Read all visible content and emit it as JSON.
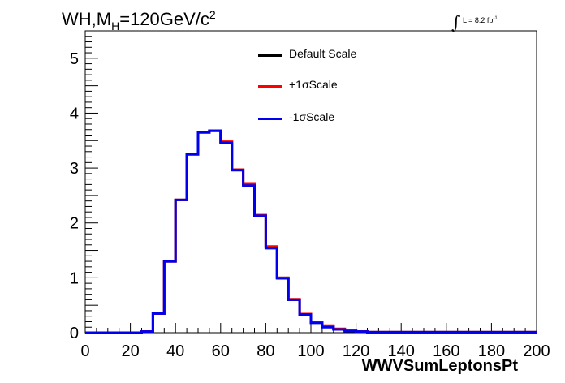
{
  "annotations": {
    "title_main": "WH,M",
    "title_sub": "H",
    "title_value": "=120GeV/c",
    "title_sup": "2",
    "lumi_integral": "∫",
    "lumi_text": "L = 8.2 fb",
    "lumi_sup": "-1"
  },
  "colors": {
    "default": "#000000",
    "plus": "#ff0000",
    "minus": "#0000ee"
  },
  "chart_data": {
    "type": "line",
    "step": true,
    "title": "WH,MH=120GeV/c2",
    "xlabel": "WWVSumLeptonsPt",
    "ylabel": "",
    "xlim": [
      0,
      200
    ],
    "ylim": [
      0,
      5.5
    ],
    "xticks": [
      0,
      20,
      40,
      60,
      80,
      100,
      120,
      140,
      160,
      180,
      200
    ],
    "yticks": [
      0,
      1,
      2,
      3,
      4,
      5
    ],
    "grid": false,
    "legend_position": "top-center",
    "bin_edges": [
      0,
      5,
      10,
      15,
      20,
      25,
      30,
      35,
      40,
      45,
      50,
      55,
      60,
      65,
      70,
      75,
      80,
      85,
      90,
      95,
      100,
      105,
      110,
      115,
      120,
      125,
      130,
      135,
      140,
      145,
      150,
      155,
      160,
      165,
      170,
      175,
      180,
      185,
      190,
      195,
      200
    ],
    "series": [
      {
        "name": "Default Scale",
        "values": [
          0,
          0,
          0,
          0,
          0,
          0.02,
          0.35,
          1.3,
          2.42,
          3.25,
          3.65,
          3.68,
          3.47,
          2.97,
          2.7,
          2.14,
          1.56,
          1.0,
          0.6,
          0.33,
          0.19,
          0.11,
          0.06,
          0.04,
          0.02,
          0.01,
          0.01,
          0.01,
          0.01,
          0.01,
          0.01,
          0.01,
          0.01,
          0.01,
          0.01,
          0.01,
          0.01,
          0.01,
          0.01,
          0.01
        ]
      },
      {
        "name": "+1σScale",
        "values": [
          0,
          0,
          0,
          0,
          0,
          0.02,
          0.35,
          1.3,
          2.42,
          3.25,
          3.65,
          3.68,
          3.48,
          2.97,
          2.72,
          2.14,
          1.57,
          1.0,
          0.61,
          0.34,
          0.2,
          0.13,
          0.07,
          0.04,
          0.02,
          0.01,
          0.01,
          0.01,
          0.01,
          0.01,
          0.01,
          0.01,
          0.01,
          0.01,
          0.01,
          0.01,
          0.01,
          0.01,
          0.01,
          0.01
        ]
      },
      {
        "name": "-1σScale",
        "values": [
          0,
          0,
          0,
          0,
          0,
          0.02,
          0.35,
          1.3,
          2.42,
          3.25,
          3.65,
          3.68,
          3.46,
          2.96,
          2.68,
          2.13,
          1.54,
          0.99,
          0.6,
          0.33,
          0.18,
          0.1,
          0.06,
          0.03,
          0.02,
          0.01,
          0.01,
          0.01,
          0.01,
          0.01,
          0.01,
          0.01,
          0.01,
          0.01,
          0.01,
          0.01,
          0.01,
          0.01,
          0.01,
          0.01
        ]
      }
    ]
  }
}
